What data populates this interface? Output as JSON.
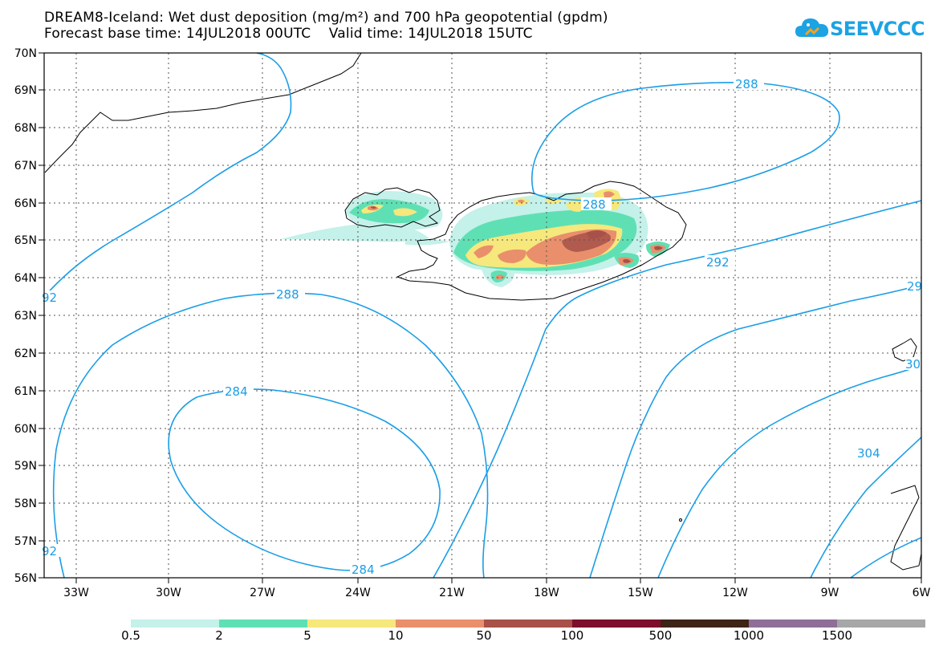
{
  "header": {
    "title_line1": "DREAM8-Iceland: Wet dust deposition (mg/m²) and 700 hPa geopotential (gpdm)",
    "title_line2": "Forecast base time: 14JUL2018 00UTC    Valid time: 14JUL2018 15UTC"
  },
  "logo": {
    "text": "SEEVCCC",
    "icon": "cloud-icon",
    "color": "#1ba3e4"
  },
  "map": {
    "lat_labels": [
      "70N",
      "69N",
      "68N",
      "67N",
      "66N",
      "65N",
      "64N",
      "63N",
      "62N",
      "61N",
      "60N",
      "59N",
      "58N",
      "57N",
      "56N"
    ],
    "lon_labels": [
      "33W",
      "30W",
      "27W",
      "24W",
      "21W",
      "18W",
      "15W",
      "12W",
      "9W",
      "6W"
    ],
    "contour_labels": [
      "288",
      "288",
      "288",
      "292",
      "284",
      "284",
      "292",
      "29",
      "30",
      "304",
      "92",
      "92",
      "30"
    ],
    "contour_color": "#1a9ee6"
  },
  "legend": {
    "labels": [
      "0.5",
      "2",
      "5",
      "10",
      "50",
      "100",
      "500",
      "1000",
      "1500"
    ],
    "colors": [
      "#c4f1ea",
      "#5fe0b4",
      "#f6e87c",
      "#e98f6c",
      "#a75149",
      "#7d0e2c",
      "#3c2416",
      "#8f6f99",
      "#a7a7a7"
    ]
  }
}
